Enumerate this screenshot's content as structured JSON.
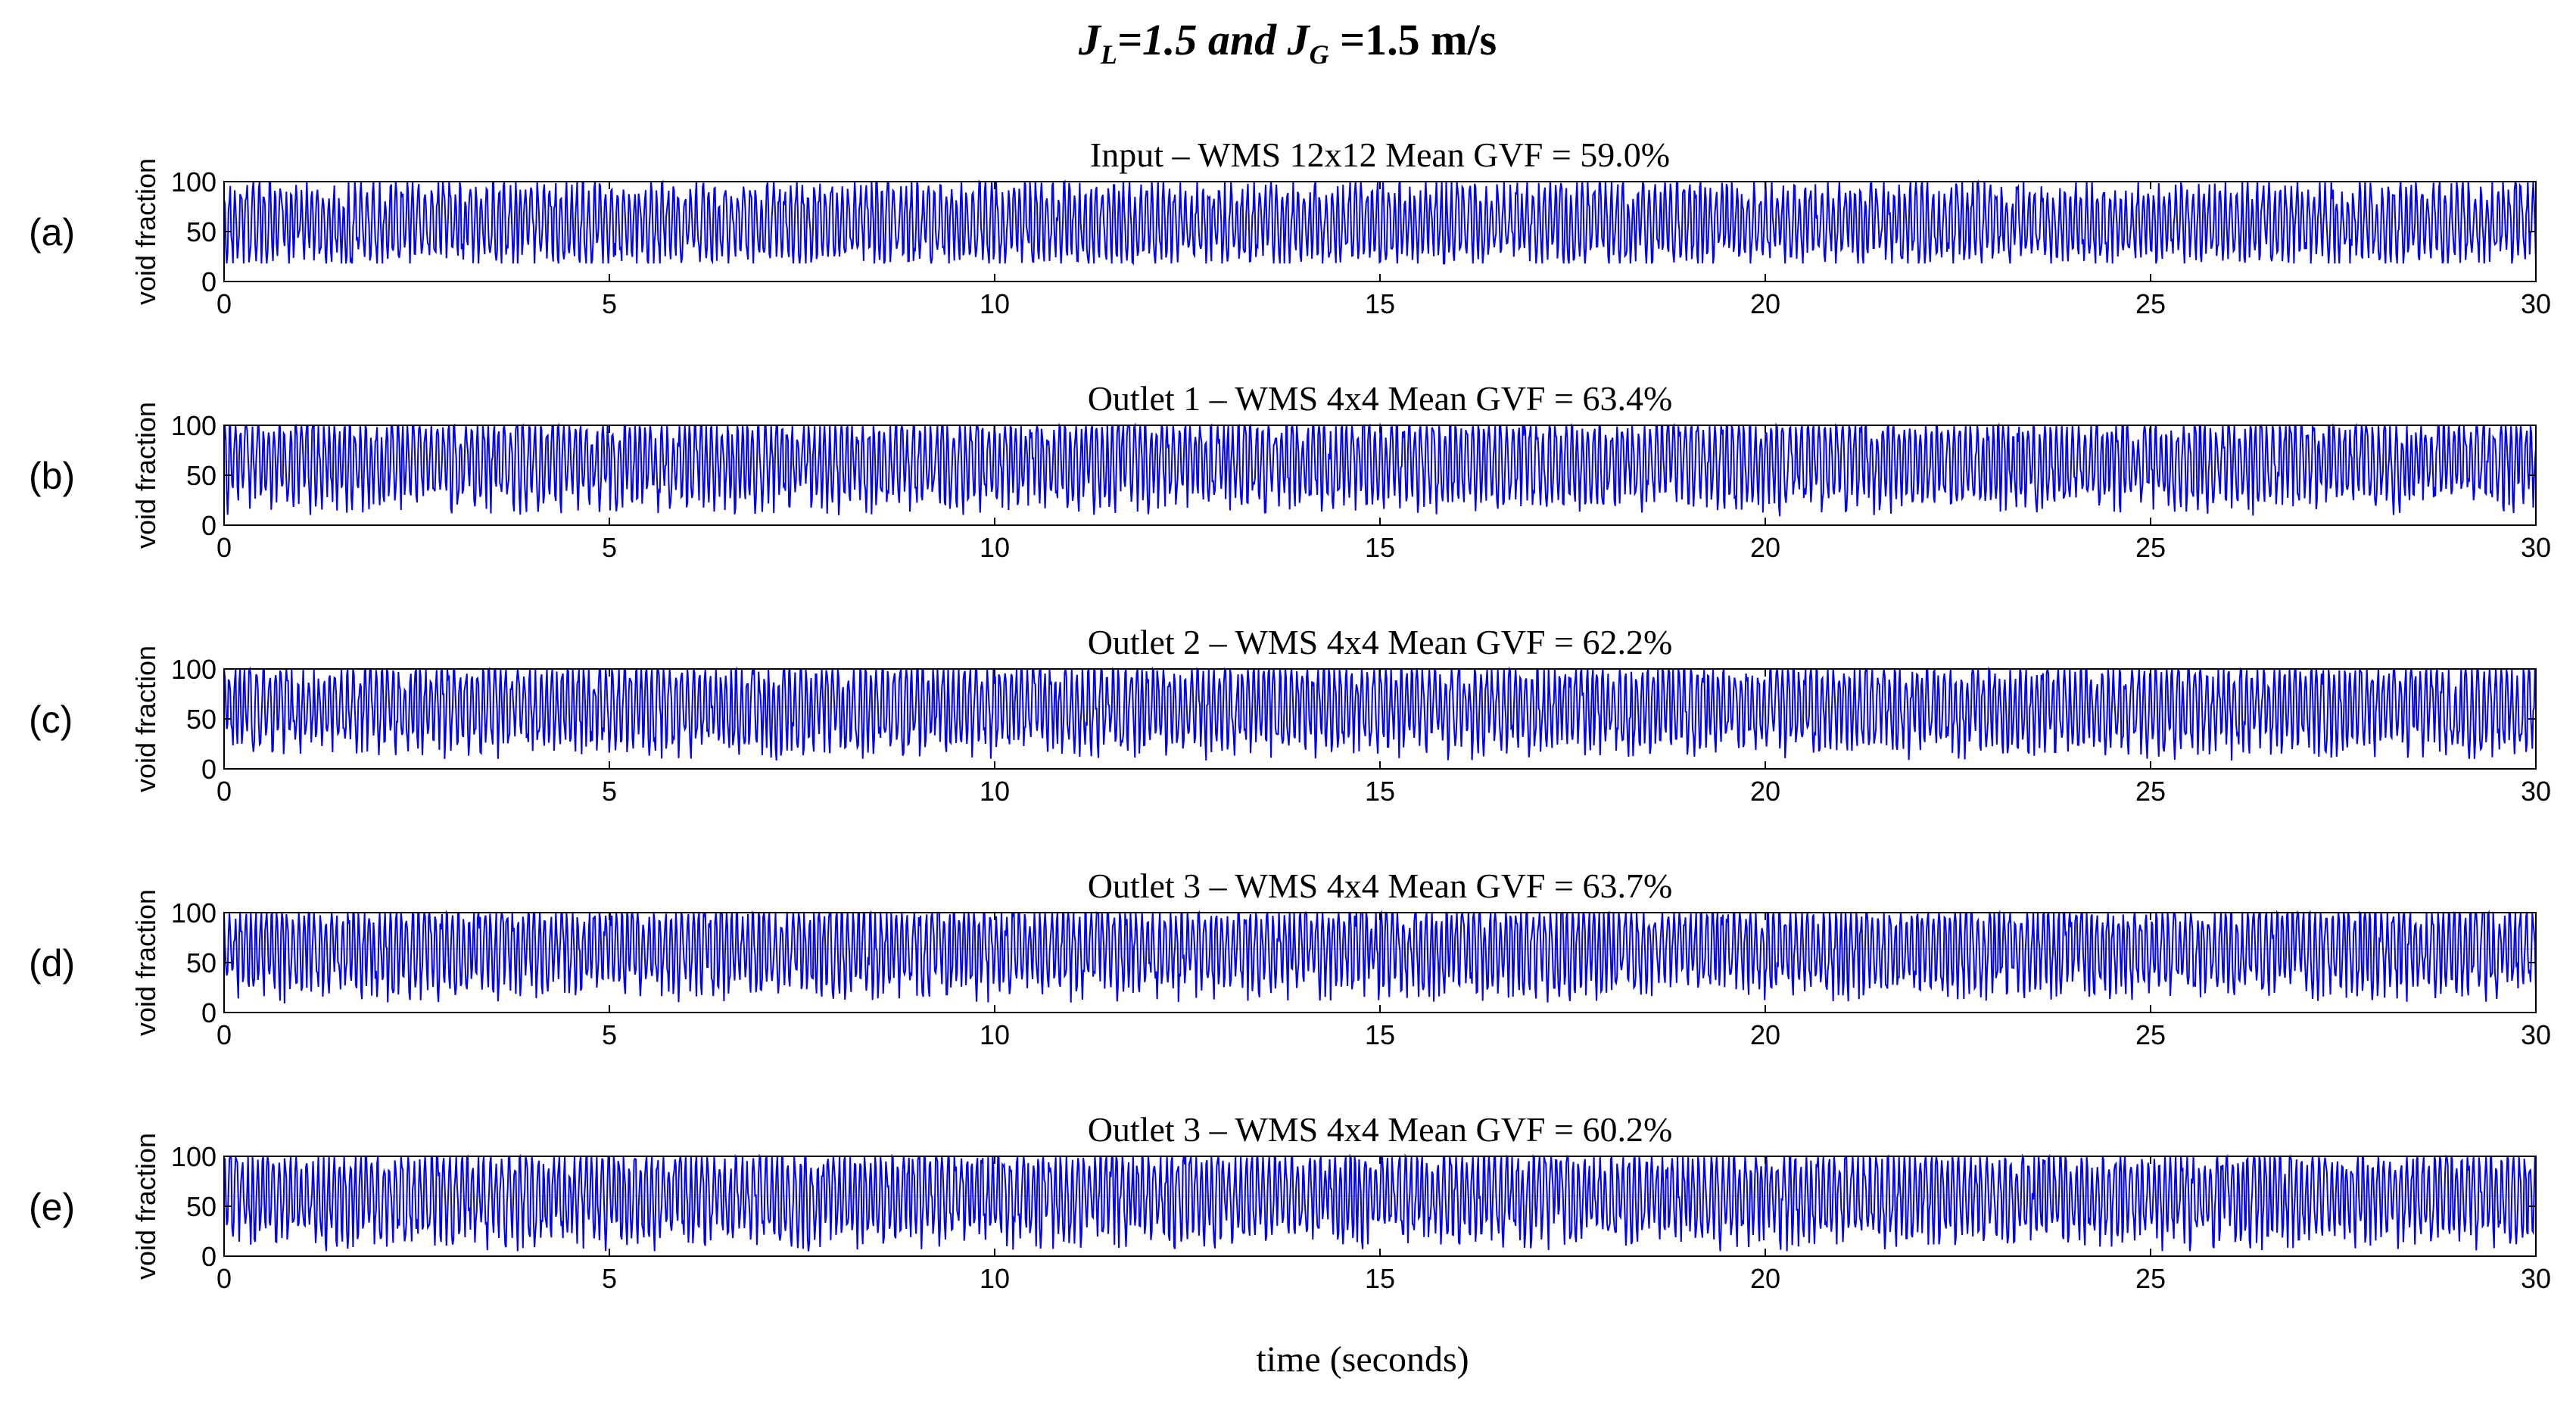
{
  "title": {
    "part1": "J",
    "sub1": "L",
    "part2": "=1.5 and J",
    "sub2": "G",
    "part3": " =1.5 m/s"
  },
  "xlabel": "time (seconds)",
  "colors": {
    "line": "#0000ff",
    "axis": "#000000",
    "grid_ref": "#000000"
  },
  "chart_data": [
    {
      "type": "line",
      "panel_label": "(a)",
      "title": "Input – WMS 12x12      Mean GVF = 59.0%",
      "ylabel": "void fraction",
      "xlim": [
        0,
        30
      ],
      "ylim": [
        0,
        100
      ],
      "xticks": [
        0,
        5,
        10,
        15,
        20,
        25,
        30
      ],
      "yticks": [
        0,
        50,
        100
      ],
      "mean_gvf": 59.0,
      "signal": {
        "min": 18,
        "max": 100,
        "mean": 59.0
      }
    },
    {
      "type": "line",
      "panel_label": "(b)",
      "title": "Outlet 1 – WMS 4x4     Mean GVF = 63.4%",
      "ylabel": "void fraction",
      "xlim": [
        0,
        30
      ],
      "ylim": [
        0,
        100
      ],
      "xticks": [
        0,
        5,
        10,
        15,
        20,
        25,
        30
      ],
      "yticks": [
        0,
        50,
        100
      ],
      "mean_gvf": 63.4,
      "signal": {
        "min": 8,
        "max": 100,
        "mean": 63.4
      }
    },
    {
      "type": "line",
      "panel_label": "(c)",
      "title": "Outlet 2 – WMS 4x4     Mean GVF = 62.2%",
      "ylabel": "void fraction",
      "xlim": [
        0,
        30
      ],
      "ylim": [
        0,
        100
      ],
      "xticks": [
        0,
        5,
        10,
        15,
        20,
        25,
        30
      ],
      "yticks": [
        0,
        50,
        100
      ],
      "mean_gvf": 62.2,
      "signal": {
        "min": 8,
        "max": 100,
        "mean": 62.2
      }
    },
    {
      "type": "line",
      "panel_label": "(d)",
      "title": "Outlet 3  – WMS 4x4     Mean GVF = 63.7%",
      "ylabel": "void fraction",
      "xlim": [
        0,
        30
      ],
      "ylim": [
        0,
        100
      ],
      "xticks": [
        0,
        5,
        10,
        15,
        20,
        25,
        30
      ],
      "yticks": [
        0,
        50,
        100
      ],
      "mean_gvf": 63.7,
      "signal": {
        "min": 8,
        "max": 100,
        "mean": 63.7
      }
    },
    {
      "type": "line",
      "panel_label": "(e)",
      "title": "Outlet 3  – WMS 4x4     Mean GVF = 60.2%",
      "ylabel": "void fraction",
      "xlim": [
        0,
        30
      ],
      "ylim": [
        0,
        100
      ],
      "xticks": [
        0,
        5,
        10,
        15,
        20,
        25,
        30
      ],
      "yticks": [
        0,
        50,
        100
      ],
      "mean_gvf": 60.2,
      "signal": {
        "min": 5,
        "max": 100,
        "mean": 60.2
      }
    }
  ]
}
